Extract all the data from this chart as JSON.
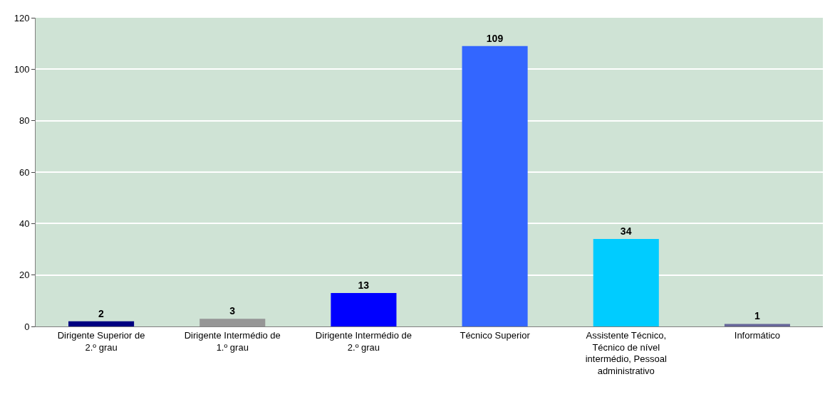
{
  "chart_data": {
    "type": "bar",
    "categories": [
      "Dirigente Superior de 2.º grau",
      "Dirigente Intermédio de 1.º grau",
      "Dirigente Intermédio de 2.º grau",
      "Técnico Superior",
      "Assistente Técnico, Técnico de nível intermédio, Pessoal administrativo",
      "Informático"
    ],
    "values": [
      2,
      3,
      13,
      109,
      34,
      1
    ],
    "colors": [
      "#000080",
      "#969696",
      "#0000ff",
      "#3366ff",
      "#00ccff",
      "#666699"
    ],
    "ylim": [
      0,
      120
    ],
    "yticks": [
      0,
      20,
      40,
      60,
      80,
      100,
      120
    ],
    "grid": "y",
    "data_labels": true
  }
}
